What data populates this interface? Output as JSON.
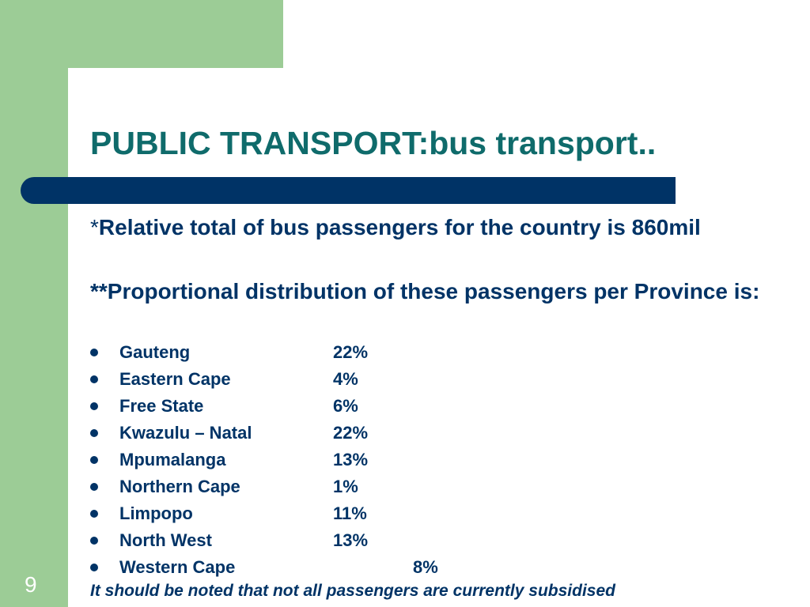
{
  "slide": {
    "number": "9",
    "title": "PUBLIC TRANSPORT:bus transport..",
    "paragraph1": {
      "marker": "*",
      "text": "Relative total of bus passengers for the country is 860mil"
    },
    "paragraph2": {
      "text": "**Proportional distribution of these passengers per Province is:"
    },
    "provinces": [
      {
        "name": "Gauteng",
        "percent": "22%"
      },
      {
        "name": "Eastern Cape",
        "percent": "4%"
      },
      {
        "name": "Free State",
        "percent": "6%"
      },
      {
        "name": "Kwazulu – Natal",
        "percent": "22%"
      },
      {
        "name": "Mpumalanga",
        "percent": "13%"
      },
      {
        "name": "Northern Cape",
        "percent": "1%"
      },
      {
        "name": "Limpopo",
        "percent": "11%"
      },
      {
        "name": "North West",
        "percent": "13%"
      },
      {
        "name": "Western Cape",
        "percent": "8%"
      }
    ],
    "note": "It should be noted that not all passengers are currently subsidised"
  },
  "colors": {
    "accent_green": "#9ccc96",
    "title_teal": "#0f6b6b",
    "navy": "#003366"
  }
}
